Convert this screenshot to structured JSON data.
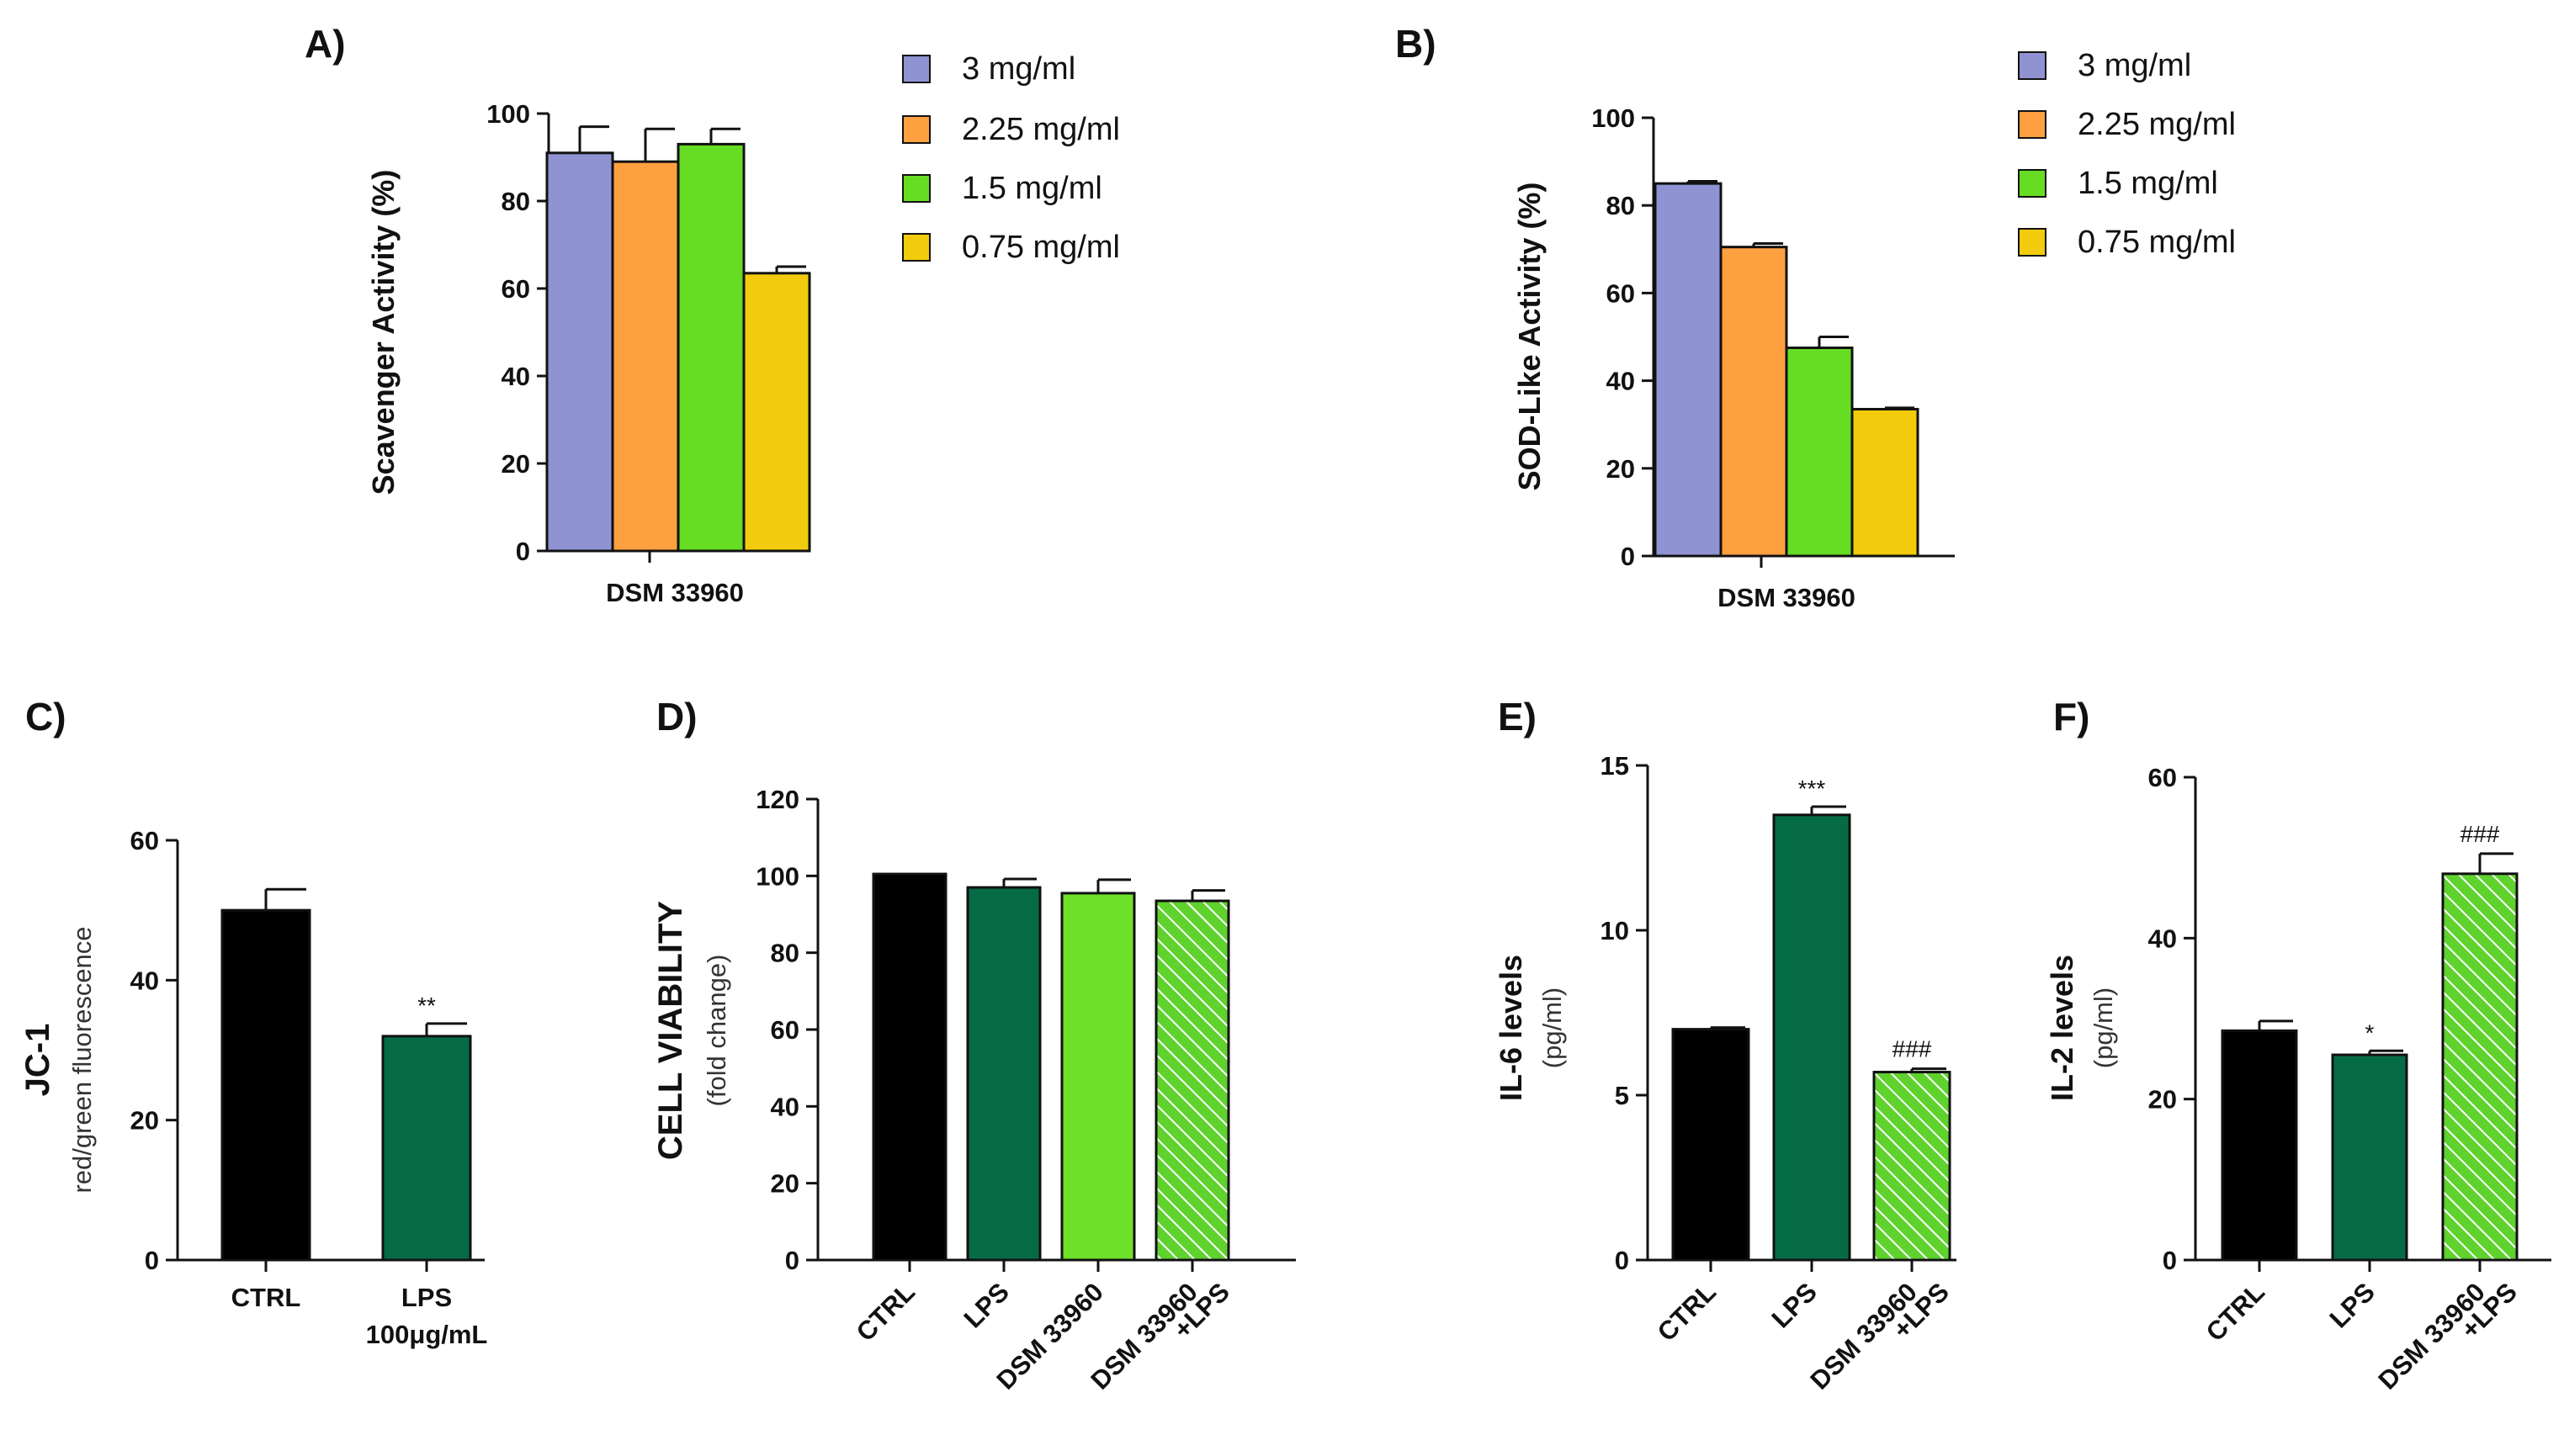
{
  "colors": {
    "c3": "#8f93d1",
    "c225": "#ffa040",
    "c15": "#66dd22",
    "c075": "#f2cc0c",
    "black": "#000000",
    "dkgreen": "#056b45",
    "ltgreen": "#6ee02a",
    "hatch": "#5fd22e"
  },
  "chart_data": [
    {
      "id": "A",
      "panel": "A)",
      "type": "bar",
      "ylabel": "Scavenger Activity (%)",
      "ylim": [
        0,
        100
      ],
      "yticks": [
        "0",
        "20",
        "40",
        "60",
        "80",
        "100"
      ],
      "categories": [
        "DSM 33960"
      ],
      "series": [
        {
          "name": "3 mg/ml",
          "values": [
            91
          ],
          "err": [
            6
          ]
        },
        {
          "name": "2.25 mg/ml",
          "values": [
            89
          ],
          "err": [
            7.5
          ]
        },
        {
          "name": "1.5 mg/ml",
          "values": [
            93
          ],
          "err": [
            3.5
          ]
        },
        {
          "name": "0.75 mg/ml",
          "values": [
            63.5
          ],
          "err": [
            1.5
          ]
        }
      ],
      "legend": [
        "3 mg/ml",
        "2.25 mg/ml",
        "1.5 mg/ml",
        "0.75 mg/ml"
      ]
    },
    {
      "id": "B",
      "panel": "B)",
      "type": "bar",
      "ylabel": "SOD-Like Activity (%)",
      "ylim": [
        0,
        100
      ],
      "yticks": [
        "0",
        "20",
        "40",
        "60",
        "80",
        "100"
      ],
      "categories": [
        "DSM 33960"
      ],
      "series": [
        {
          "name": "3 mg/ml",
          "values": [
            85
          ],
          "err": [
            0.5
          ]
        },
        {
          "name": "2.25 mg/ml",
          "values": [
            70.5
          ],
          "err": [
            0.8
          ]
        },
        {
          "name": "1.5 mg/ml",
          "values": [
            47.5
          ],
          "err": [
            2.5
          ]
        },
        {
          "name": "0.75 mg/ml",
          "values": [
            33.5
          ],
          "err": [
            0.3
          ]
        }
      ],
      "legend": [
        "3 mg/ml",
        "2.25 mg/ml",
        "1.5 mg/ml",
        "0.75 mg/ml"
      ]
    },
    {
      "id": "C",
      "panel": "C)",
      "type": "bar",
      "ylabel": "JC-1",
      "ylabel_sub": "red/green fluorescence",
      "ylim": [
        0,
        60
      ],
      "yticks": [
        "0",
        "20",
        "40",
        "60"
      ],
      "categories": [
        "CTRL",
        "LPS"
      ],
      "category_sub": [
        "",
        "100μg/mL"
      ],
      "values": [
        50,
        32
      ],
      "err": [
        3,
        1.8
      ],
      "annotations": [
        "",
        "**"
      ]
    },
    {
      "id": "D",
      "panel": "D)",
      "type": "bar",
      "ylabel": "CELL VIABILITY",
      "ylabel_sub": "(fold change)",
      "ylim": [
        0,
        120
      ],
      "yticks": [
        "0",
        "20",
        "40",
        "60",
        "80",
        "100",
        "120"
      ],
      "categories": [
        "CTRL",
        "LPS",
        "DSM 33960",
        "DSM 33960"
      ],
      "category_sub": [
        "",
        "",
        "",
        "+LPS"
      ],
      "values": [
        100.5,
        97,
        95.5,
        93.5
      ],
      "err": [
        0,
        2.2,
        3.5,
        2.7
      ],
      "annotations": [
        "",
        "",
        "",
        ""
      ]
    },
    {
      "id": "E",
      "panel": "E)",
      "type": "bar",
      "ylabel": "IL-6 levels",
      "ylabel_sub": "(pg/ml)",
      "ylim": [
        0,
        15
      ],
      "yticks": [
        "0",
        "5",
        "10",
        "15"
      ],
      "categories": [
        "CTRL",
        "LPS",
        "DSM 33960"
      ],
      "category_sub": [
        "",
        "",
        "+LPS"
      ],
      "values": [
        7,
        13.5,
        5.7
      ],
      "err": [
        0.05,
        0.25,
        0.1
      ],
      "annotations": [
        "",
        "***",
        "###"
      ]
    },
    {
      "id": "F",
      "panel": "F)",
      "type": "bar",
      "ylabel": "IL-2 levels",
      "ylabel_sub": "(pg/ml)",
      "ylim": [
        0,
        60
      ],
      "yticks": [
        "0",
        "20",
        "40",
        "60"
      ],
      "categories": [
        "CTRL",
        "LPS",
        "DSM 33960"
      ],
      "category_sub": [
        "",
        "",
        "+LPS"
      ],
      "values": [
        28.5,
        25.5,
        48
      ],
      "err": [
        1.2,
        0.5,
        2.5
      ],
      "annotations": [
        "",
        "*",
        "###"
      ]
    }
  ]
}
